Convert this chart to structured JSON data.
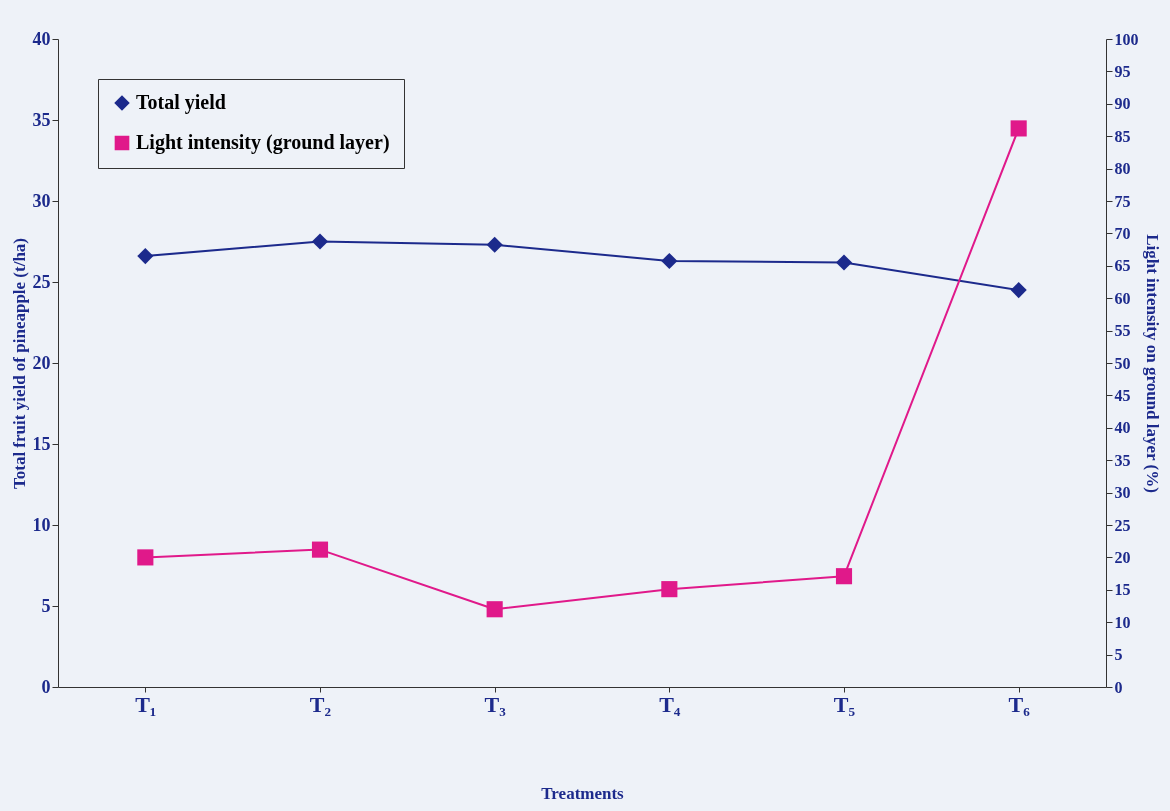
{
  "chart_data": {
    "type": "line",
    "xlabel": "Treatments",
    "ylabel": "Total fruit yield of pineapple (t/ha)",
    "y2label": "Light intensity on ground layer (%)",
    "categories": [
      "T₁",
      "T₂",
      "T₃",
      "T₄",
      "T₅",
      "T₆"
    ],
    "series": [
      {
        "name": "Total yield",
        "color": "#1c2a8c",
        "marker": "diamond",
        "values": [
          26.6,
          27.5,
          27.3,
          26.3,
          26.2,
          24.5
        ]
      },
      {
        "name": "Light intensity (ground layer)",
        "color": "#e0198a",
        "marker": "square",
        "axis": "y2",
        "values": [
          20,
          21.2,
          12,
          15.1,
          17.1,
          86.2
        ]
      }
    ],
    "ylim": [
      0,
      40
    ],
    "yticks": [
      0,
      5,
      10,
      15,
      20,
      25,
      30,
      35,
      40
    ],
    "y2lim": [
      0,
      100
    ],
    "y2ticks": [
      0,
      5,
      10,
      15,
      20,
      25,
      30,
      35,
      40,
      45,
      50,
      55,
      60,
      65,
      70,
      75,
      80,
      85,
      90,
      95,
      100
    ],
    "grid": false,
    "legend": "top left",
    "line_style": "solid"
  }
}
